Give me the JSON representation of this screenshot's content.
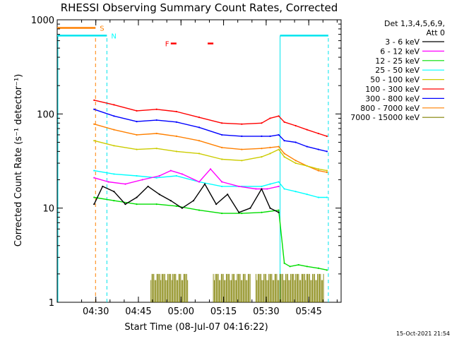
{
  "chart_data": {
    "type": "line",
    "title": "RHESSI Observing Summary Count Rates, Corrected",
    "xlabel": "Start Time (08-Jul-07 04:16:22)",
    "ylabel": "Corrected Count Rate (s⁻¹ detector⁻¹)",
    "yscale": "log",
    "xlim": [
      0,
      100
    ],
    "ylim": [
      1,
      1000
    ],
    "x_ticks": [
      {
        "label": "04:30",
        "x": 13.6
      },
      {
        "label": "04:45",
        "x": 28.6
      },
      {
        "label": "05:00",
        "x": 43.6
      },
      {
        "label": "05:15",
        "x": 58.6
      },
      {
        "label": "05:30",
        "x": 73.6
      },
      {
        "label": "05:45",
        "x": 88.6
      }
    ],
    "y_ticks": [
      {
        "label": "1",
        "value": 1
      },
      {
        "label": "10",
        "value": 10
      },
      {
        "label": "100",
        "value": 100
      },
      {
        "label": "1000",
        "value": 1000
      }
    ],
    "legend": {
      "header": [
        "Det 1,3,4,5,6,9,",
        "Att 0"
      ],
      "placement": "right",
      "entries": [
        {
          "label": "3 - 6 keV",
          "color": "#000000"
        },
        {
          "label": "6 - 12 keV",
          "color": "#ff00ff"
        },
        {
          "label": "12 - 25 keV",
          "color": "#00dd00"
        },
        {
          "label": "25 - 50 keV",
          "color": "#00ffff"
        },
        {
          "label": "50 - 100 keV",
          "color": "#cccc00"
        },
        {
          "label": "100 - 300 keV",
          "color": "#ff0000"
        },
        {
          "label": "300 - 800 keV",
          "color": "#0000ff"
        },
        {
          "label": "800 - 7000 keV",
          "color": "#ff8000"
        },
        {
          "label": "7000 - 15000 keV",
          "color": "#808000"
        }
      ]
    },
    "flags": [
      {
        "label": "S",
        "color": "#ff8000"
      },
      {
        "label": "N",
        "color": "#00ffff"
      },
      {
        "label": "F",
        "color": "#ff0000"
      }
    ],
    "series": [
      {
        "band": "100 - 300 keV",
        "color": "#ff0000",
        "x": [
          13,
          20,
          28,
          35,
          42,
          50,
          58,
          65,
          72,
          75,
          78,
          80,
          84,
          88,
          92,
          95
        ],
        "y": [
          140,
          125,
          108,
          112,
          106,
          92,
          80,
          78,
          80,
          90,
          95,
          82,
          75,
          68,
          62,
          58
        ]
      },
      {
        "band": "300 - 800 keV",
        "color": "#0000ff",
        "x": [
          13,
          20,
          28,
          35,
          42,
          50,
          58,
          65,
          72,
          75,
          78,
          80,
          84,
          88,
          92,
          95
        ],
        "y": [
          112,
          95,
          83,
          86,
          82,
          72,
          60,
          58,
          58,
          58,
          60,
          52,
          50,
          45,
          42,
          40
        ]
      },
      {
        "band": "800 - 7000 keV",
        "color": "#ff8000",
        "x": [
          13,
          20,
          28,
          35,
          42,
          50,
          58,
          65,
          72,
          75,
          78,
          80,
          84,
          88,
          92,
          95
        ],
        "y": [
          78,
          68,
          60,
          62,
          58,
          52,
          44,
          42,
          43,
          44,
          45,
          38,
          32,
          28,
          25,
          24
        ]
      },
      {
        "band": "50 - 100 keV",
        "color": "#cccc00",
        "x": [
          13,
          20,
          28,
          35,
          42,
          50,
          58,
          65,
          72,
          75,
          78,
          80,
          84,
          88,
          92,
          95
        ],
        "y": [
          52,
          46,
          42,
          43,
          40,
          38,
          33,
          32,
          35,
          38,
          42,
          35,
          30,
          28,
          26,
          25
        ]
      },
      {
        "band": "25 - 50 keV",
        "color": "#00ffff",
        "x": [
          13,
          20,
          28,
          35,
          42,
          50,
          58,
          65,
          72,
          75,
          78,
          80,
          84,
          88,
          92,
          95
        ],
        "y": [
          25,
          23,
          22,
          21,
          22,
          19,
          17,
          17,
          17,
          18,
          19,
          16,
          15,
          14,
          13,
          13
        ]
      },
      {
        "band": "6 - 12 keV",
        "color": "#ff00ff",
        "x": [
          13,
          18,
          24,
          30,
          36,
          40,
          44,
          50,
          54,
          58,
          64,
          70,
          74,
          78
        ],
        "y": [
          21,
          19,
          18,
          20,
          22,
          25,
          23,
          19,
          26,
          19,
          17,
          16,
          16,
          17
        ]
      },
      {
        "band": "12 - 25 keV",
        "color": "#00dd00",
        "x": [
          13,
          20,
          28,
          35,
          42,
          50,
          58,
          65,
          72,
          78,
          80,
          82,
          85,
          88,
          92,
          95
        ],
        "y": [
          13,
          12,
          11,
          11,
          10.5,
          9.5,
          8.8,
          8.8,
          9,
          9.5,
          2.6,
          2.4,
          2.5,
          2.4,
          2.3,
          2.2
        ]
      },
      {
        "band": "3 - 6 keV",
        "color": "#000000",
        "x": [
          13,
          16,
          20,
          24,
          28,
          32,
          36,
          40,
          44,
          48,
          52,
          56,
          60,
          64,
          68,
          72,
          75,
          78
        ],
        "y": [
          11,
          17,
          15,
          11,
          13,
          17,
          14,
          12,
          10,
          12,
          18,
          11,
          14,
          9,
          10,
          16,
          10,
          9
        ]
      }
    ],
    "attenuator_band": {
      "band": "7000 - 15000 keV",
      "color": "#808000",
      "segments": [
        [
          33,
          46
        ],
        [
          55,
          68
        ],
        [
          70,
          94
        ]
      ],
      "y_low": 1,
      "y_high": 2
    }
  },
  "timestamp": "15-Oct-2021 21:54"
}
